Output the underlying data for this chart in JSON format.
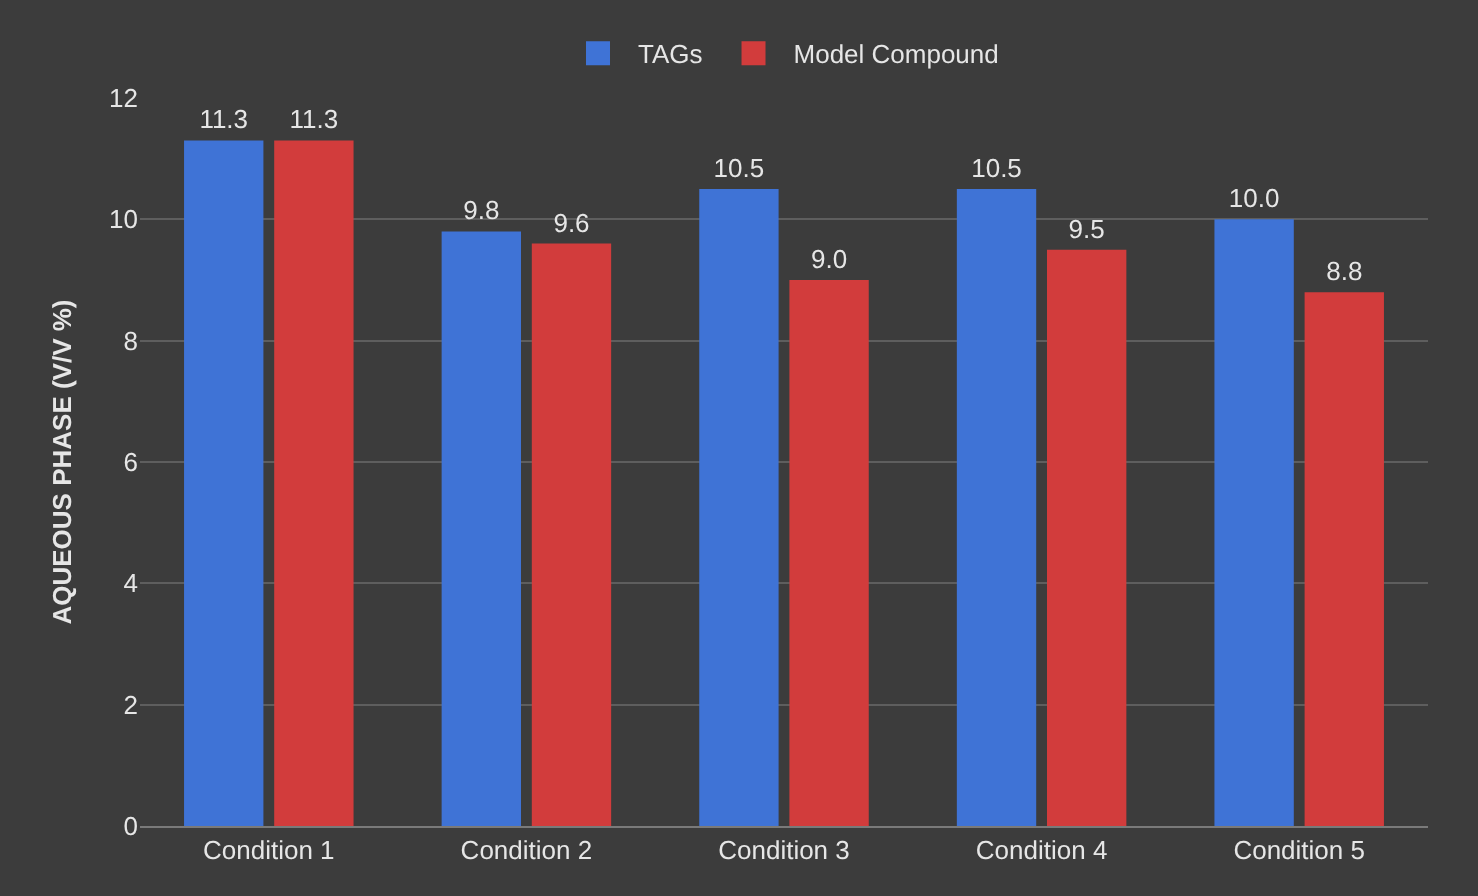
{
  "chart_data": {
    "type": "bar",
    "ylabel": "AQUEOUS PHASE (V/V %)",
    "categories": [
      "Condition 1",
      "Condition 2",
      "Condition 3",
      "Condition 4",
      "Condition 5"
    ],
    "series": [
      {
        "name": "TAGs",
        "color": "#3f73d6",
        "values": [
          11.3,
          9.8,
          10.5,
          10.5,
          10.0
        ],
        "value_labels": [
          "11.3",
          "9.8",
          "10.5",
          "10.5",
          "10.0"
        ]
      },
      {
        "name": "Model Compound",
        "color": "#d23c3c",
        "values": [
          11.3,
          9.6,
          9.0,
          9.5,
          8.8
        ],
        "value_labels": [
          "11.3",
          "9.6",
          "9.0",
          "9.5",
          "8.8"
        ]
      }
    ],
    "ylim": [
      0,
      12
    ],
    "yticks": [
      0,
      2,
      4,
      6,
      8,
      10,
      12
    ],
    "grid": "y",
    "legend": "top"
  }
}
